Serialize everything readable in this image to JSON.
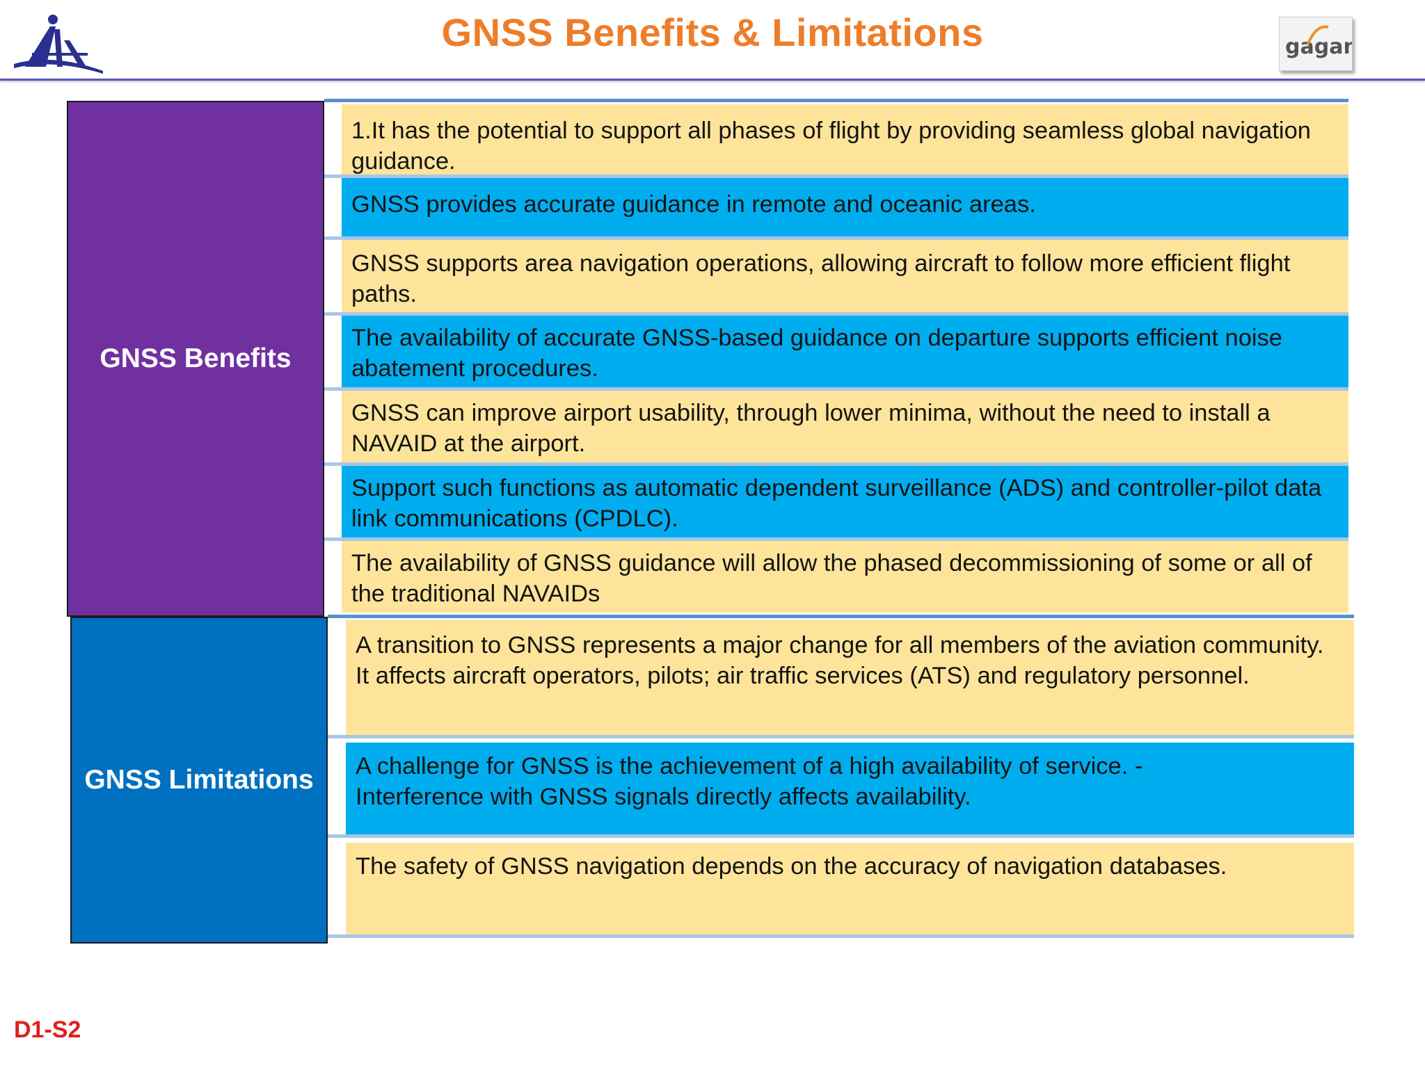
{
  "header": {
    "title": "GNSS Benefits & Limitations",
    "left_logo": "aai-logo",
    "right_logo_text": "gagan"
  },
  "benefits": {
    "label": "GNSS Benefits",
    "items": [
      {
        "text": "1.It has the potential to support all phases of flight by providing seamless global navigation guidance.",
        "color": "#fde49a"
      },
      {
        "text": "GNSS provides accurate guidance in remote and oceanic areas.",
        "color": "#00adee"
      },
      {
        "text": "GNSS supports area navigation operations, allowing aircraft to follow more efficient flight paths.",
        "color": "#fde49a"
      },
      {
        "text": "The availability of accurate GNSS-based guidance on departure supports efficient noise abatement procedures.",
        "color": "#00adee"
      },
      {
        "text": "GNSS can improve airport usability, through lower minima, without the need to install a NAVAID at the airport.",
        "color": "#fde49a"
      },
      {
        "text": "Support such functions as automatic dependent surveillance (ADS) and controller-pilot data link communications (CPDLC).",
        "color": "#00adee"
      },
      {
        "text": "The availability of GNSS guidance will allow the phased decommissioning of some or all of the traditional NAVAIDs",
        "color": "#fde49a"
      }
    ]
  },
  "limitations": {
    "label": "GNSS Limitations",
    "items": [
      {
        "text": "A transition to GNSS represents a major change for all members of the aviation community. It affects aircraft operators, pilots; air traffic services (ATS) and regulatory personnel.",
        "color": "#fde49a"
      },
      {
        "text": "A challenge for GNSS is the achievement of a high availability of service.           - Interference with GNSS signals directly affects availability.",
        "color": "#00adee"
      },
      {
        "text": "The safety of GNSS navigation depends on the accuracy of navigation databases.",
        "color": "#fde49a"
      }
    ]
  },
  "footer": {
    "slide_id": "D1-S2"
  },
  "colors": {
    "title": "#ee7d2a",
    "benefits_box": "#7030a0",
    "limitations_box": "#0070c0",
    "row_yellow": "#fde49a",
    "row_blue": "#00adee",
    "slide_id": "#e0201a"
  }
}
